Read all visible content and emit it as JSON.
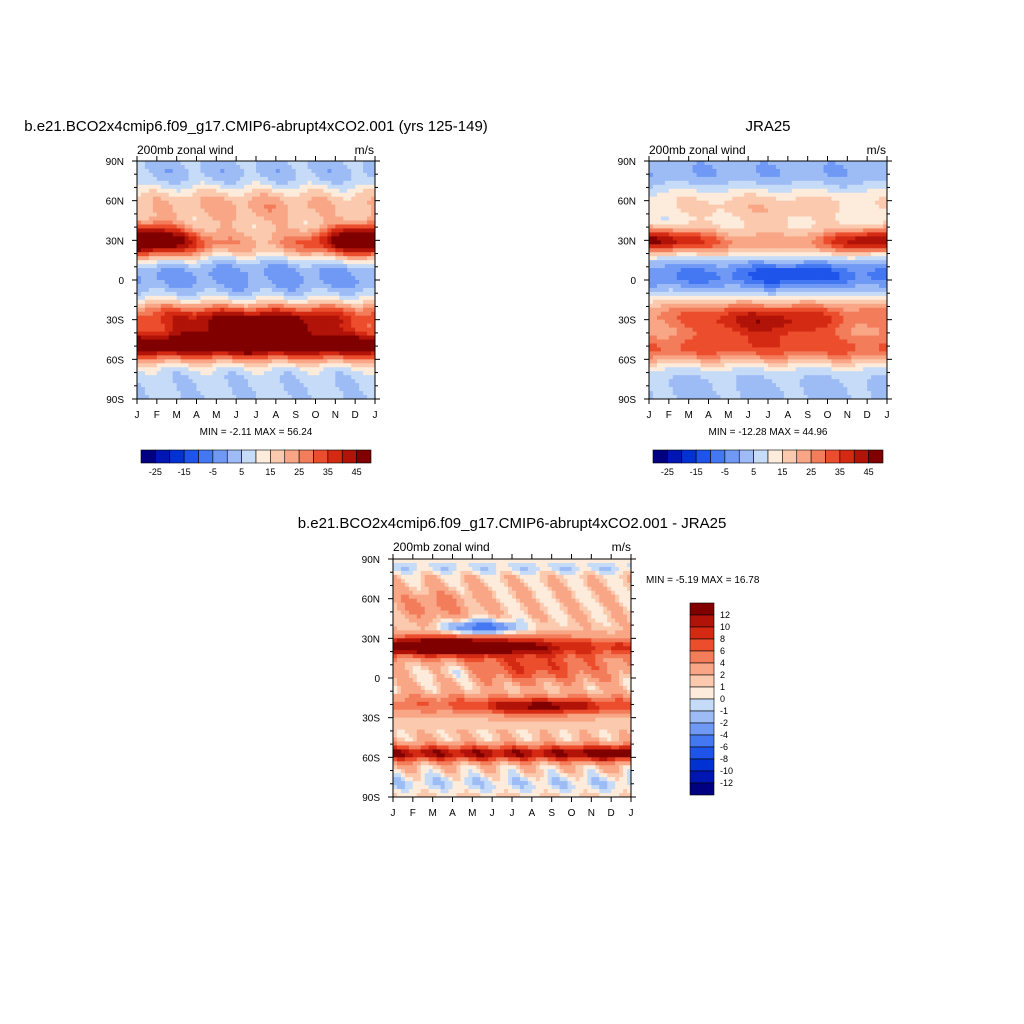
{
  "colors": {
    "full_scale": [
      "#000080",
      "#0016b2",
      "#0031d3",
      "#1f54ea",
      "#4478f2",
      "#7099f5",
      "#9dbcf5",
      "#c6dbf7",
      "#fdebdb",
      "#fbcaae",
      "#f8a686",
      "#f37d5b",
      "#ec4e2d",
      "#d42a13",
      "#b11308",
      "#800000"
    ],
    "diff_scale": [
      "#000080",
      "#0016b2",
      "#0031d3",
      "#1f54ea",
      "#4478f2",
      "#7099f5",
      "#9dbcf5",
      "#c6dbf7",
      "#fdebdb",
      "#fbcaae",
      "#f8a686",
      "#f37d5b",
      "#ec4e2d",
      "#d42a13",
      "#b11308",
      "#800000"
    ]
  },
  "chart_data": [
    {
      "type": "heatmap",
      "title": "b.e21.BCO2x4cmip6.f09_g17.CMIP6-abrupt4xCO2.001 (yrs 125-149)",
      "subtitle_left": "200mb zonal wind",
      "subtitle_right": "m/s",
      "x_ticks": [
        "J",
        "F",
        "M",
        "A",
        "M",
        "J",
        "J",
        "A",
        "S",
        "O",
        "N",
        "D",
        "J"
      ],
      "y_ticks": [
        "90N",
        "60N",
        "30N",
        "0",
        "30S",
        "60S",
        "90S"
      ],
      "stats": "MIN =  -2.11 MAX =  56.24",
      "min": -2.11,
      "max": 56.24,
      "colorbar_labels": [
        "-25",
        "-15",
        "-5",
        "5",
        "15",
        "25",
        "35",
        "45"
      ],
      "levels": [
        -30,
        -25,
        -20,
        -15,
        -10,
        -5,
        0,
        5,
        10,
        15,
        20,
        25,
        30,
        35,
        40,
        45
      ],
      "model": "run"
    },
    {
      "type": "heatmap",
      "title": "JRA25",
      "subtitle_left": "200mb zonal wind",
      "subtitle_right": "m/s",
      "x_ticks": [
        "J",
        "F",
        "M",
        "A",
        "M",
        "J",
        "J",
        "A",
        "S",
        "O",
        "N",
        "D",
        "J"
      ],
      "y_ticks": [
        "90N",
        "60N",
        "30N",
        "0",
        "30S",
        "60S",
        "90S"
      ],
      "stats": "MIN = -12.28 MAX =  44.96",
      "min": -12.28,
      "max": 44.96,
      "colorbar_labels": [
        "-25",
        "-15",
        "-5",
        "5",
        "15",
        "25",
        "35",
        "45"
      ],
      "levels": [
        -30,
        -25,
        -20,
        -15,
        -10,
        -5,
        0,
        5,
        10,
        15,
        20,
        25,
        30,
        35,
        40,
        45
      ],
      "model": "obs"
    },
    {
      "type": "heatmap",
      "title": "b.e21.BCO2x4cmip6.f09_g17.CMIP6-abrupt4xCO2.001 - JRA25",
      "subtitle_left": "200mb zonal wind",
      "subtitle_right": "m/s",
      "x_ticks": [
        "J",
        "F",
        "M",
        "A",
        "M",
        "J",
        "J",
        "A",
        "S",
        "O",
        "N",
        "D",
        "J"
      ],
      "y_ticks": [
        "90N",
        "60N",
        "30N",
        "0",
        "30S",
        "60S",
        "90S"
      ],
      "stats": "MIN =  -5.19 MAX =  16.78",
      "min": -5.19,
      "max": 16.78,
      "colorbar_labels": [
        "12",
        "10",
        "8",
        "6",
        "4",
        "2",
        "1",
        "0",
        "-1",
        "-2",
        "-4",
        "-6",
        "-8",
        "-10",
        "-12"
      ],
      "levels": [
        -14,
        -12,
        -10,
        -8,
        -6,
        -4,
        -2,
        -1,
        0,
        1,
        2,
        4,
        6,
        8,
        10,
        12
      ],
      "model": "diff"
    }
  ]
}
